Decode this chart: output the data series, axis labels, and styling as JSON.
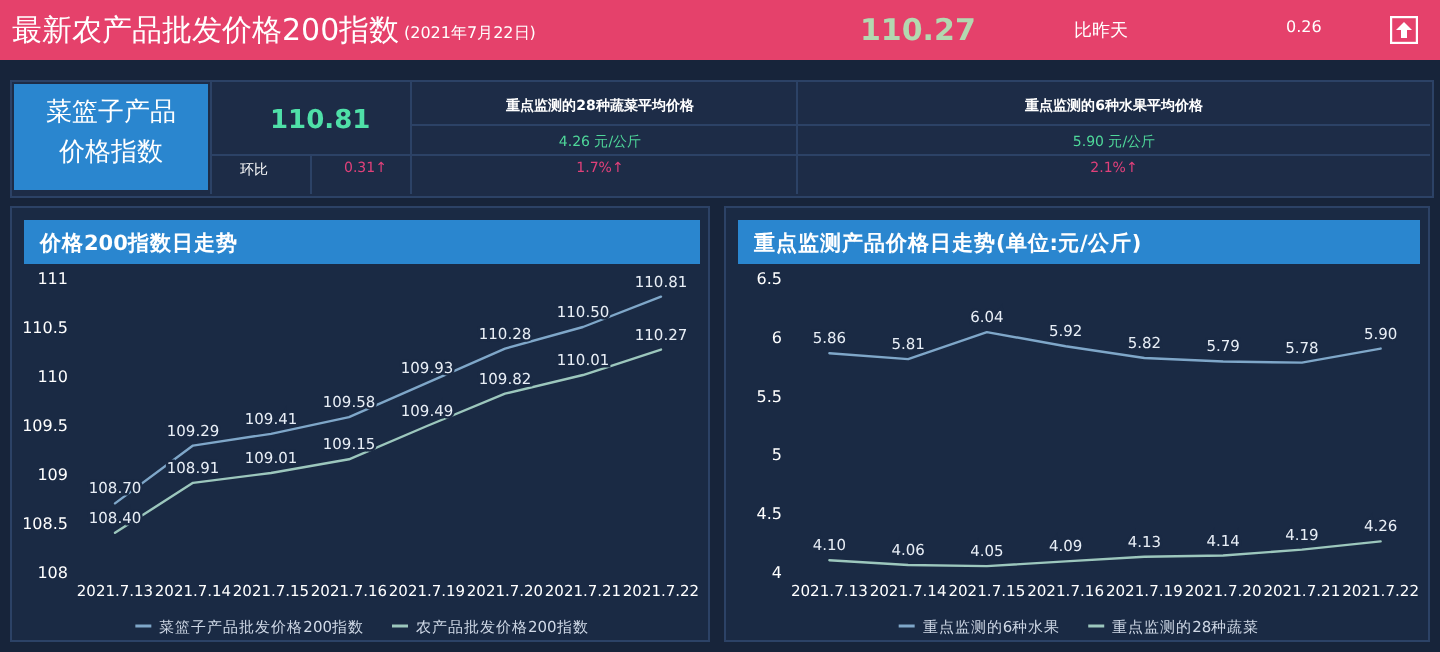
{
  "chart_data": [
    {
      "type": "other",
      "title": "最新农产品批发价格200指数",
      "subtitle": "(2021年7月22日)",
      "annotations": [
        "110.27",
        "比昨天",
        "0.26",
        "菜篮子产品价格指数",
        "110.81",
        "环比",
        "0.31↑",
        "重点监测的28种蔬菜平均价格",
        "4.26 元/公斤",
        "1.7%↑",
        "重点监测的6种水果平均价格",
        "5.90 元/公斤",
        "2.1%↑"
      ]
    },
    {
      "type": "line",
      "title": "价格200指数日走势",
      "categories": [
        "2021.7.13",
        "2021.7.14",
        "2021.7.15",
        "2021.7.16",
        "2021.7.19",
        "2021.7.20",
        "2021.7.21",
        "2021.7.22"
      ],
      "ylim": [
        108,
        111
      ],
      "yticks": [
        108,
        108.5,
        109,
        109.5,
        110,
        110.5,
        111
      ],
      "legend": "bottom",
      "line_style": "solid",
      "series": [
        {
          "name": "菜篮子产品批发价格200指数",
          "color": "#7fa7c9",
          "values": [
            108.7,
            109.29,
            109.41,
            109.58,
            109.93,
            110.28,
            110.5,
            110.81
          ],
          "value_labels": [
            "108.70",
            "109.29",
            "109.41",
            "109.58",
            "109.93",
            "110.28",
            "110.50",
            "110.81"
          ]
        },
        {
          "name": "农产品批发价格200指数",
          "color": "#9cc7bd",
          "values": [
            108.4,
            108.91,
            109.01,
            109.15,
            109.49,
            109.82,
            110.01,
            110.27
          ],
          "value_labels": [
            "108.40",
            "108.91",
            "109.01",
            "109.15",
            "109.49",
            "109.82",
            "110.01",
            "110.27"
          ]
        }
      ]
    },
    {
      "type": "line",
      "title": "重点监测产品价格日走势(单位:元/公斤)",
      "categories": [
        "2021.7.13",
        "2021.7.14",
        "2021.7.15",
        "2021.7.16",
        "2021.7.19",
        "2021.7.20",
        "2021.7.21",
        "2021.7.22"
      ],
      "ylim": [
        4,
        6.5
      ],
      "yticks": [
        4,
        4.5,
        5,
        5.5,
        6,
        6.5
      ],
      "legend": "bottom",
      "line_style": "solid",
      "series": [
        {
          "name": "重点监测的6种水果",
          "color": "#7fa7c9",
          "values": [
            5.86,
            5.81,
            6.04,
            5.92,
            5.82,
            5.79,
            5.78,
            5.9
          ],
          "value_labels": [
            "5.86",
            "5.81",
            "6.04",
            "5.92",
            "5.82",
            "5.79",
            "5.78",
            "5.90"
          ]
        },
        {
          "name": "重点监测的28种蔬菜",
          "color": "#9cc7bd",
          "values": [
            4.1,
            4.06,
            4.05,
            4.09,
            4.13,
            4.14,
            4.19,
            4.26
          ],
          "value_labels": [
            "4.10",
            "4.06",
            "4.05",
            "4.09",
            "4.13",
            "4.14",
            "4.19",
            "4.26"
          ]
        }
      ]
    }
  ]
}
